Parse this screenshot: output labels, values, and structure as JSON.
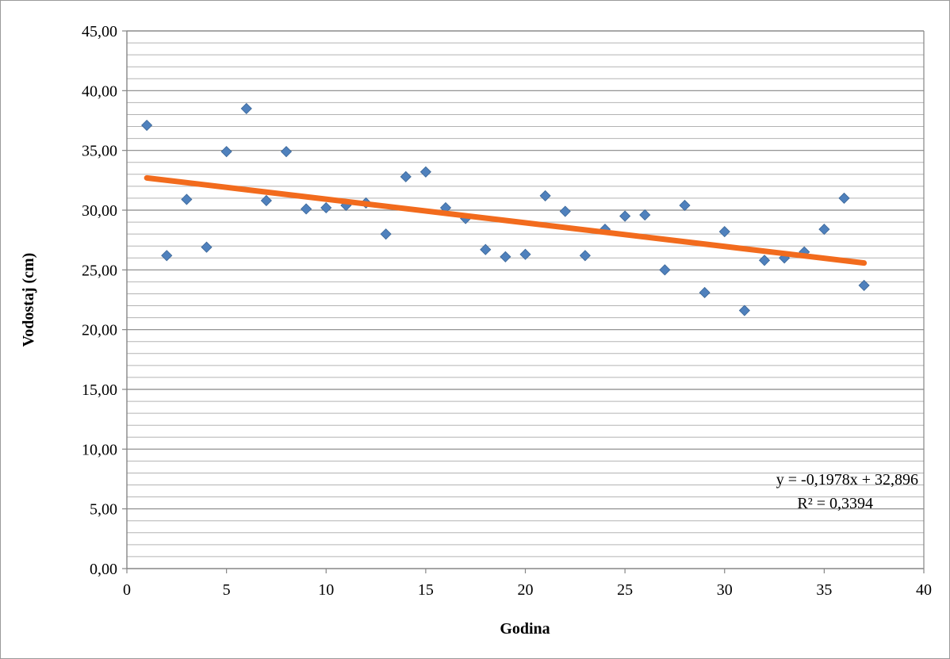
{
  "chart_data": {
    "type": "scatter",
    "title": "",
    "xlabel": "Godina",
    "ylabel": "Vodostaj (cm)",
    "xlim": [
      0,
      40
    ],
    "ylim": [
      0,
      45
    ],
    "x_ticks": [
      0,
      5,
      10,
      15,
      20,
      25,
      30,
      35,
      40
    ],
    "y_ticks": [
      0,
      5,
      10,
      15,
      20,
      25,
      30,
      35,
      40,
      45
    ],
    "x_tick_labels": [
      "0",
      "5",
      "10",
      "15",
      "20",
      "25",
      "30",
      "35",
      "40"
    ],
    "y_tick_labels": [
      "0,00",
      "5,00",
      "10,00",
      "15,00",
      "20,00",
      "25,00",
      "30,00",
      "35,00",
      "40,00",
      "45,00"
    ],
    "y_minor_step": 1,
    "grid": true,
    "legend": "none",
    "marker_color": "#4f81bd",
    "trend_color": "#f26b1d",
    "series": [
      {
        "x": [
          1,
          2,
          3,
          4,
          5,
          6,
          7,
          8,
          9,
          10,
          11,
          12,
          13,
          14,
          15,
          16,
          17,
          18,
          19,
          20,
          21,
          22,
          23,
          24,
          25,
          26,
          27,
          28,
          29,
          30,
          31,
          32,
          33,
          34,
          35,
          36,
          37
        ],
        "y": [
          37.1,
          26.2,
          30.9,
          26.9,
          34.9,
          38.5,
          30.8,
          34.9,
          30.1,
          30.2,
          30.4,
          30.6,
          28.0,
          32.8,
          33.2,
          30.2,
          29.3,
          26.7,
          26.1,
          26.3,
          31.2,
          29.9,
          26.2,
          28.4,
          29.5,
          29.6,
          25.0,
          30.4,
          23.1,
          28.2,
          21.6,
          25.8,
          26.0,
          26.5,
          28.4,
          31.0,
          23.7
        ]
      }
    ],
    "trendline": {
      "slope": -0.1978,
      "intercept": 32.896,
      "x_range": [
        1,
        37
      ],
      "equation_label": "y = -0,1978x + 32,896",
      "r2_label": "R² = 0,3394"
    }
  }
}
